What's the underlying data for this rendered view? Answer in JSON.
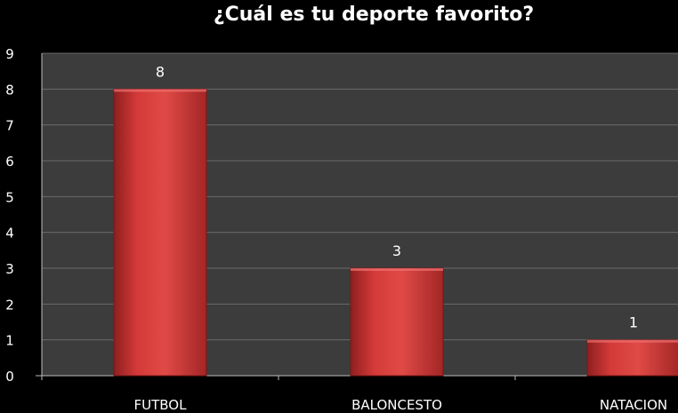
{
  "chart_data": {
    "type": "bar",
    "title": "¿Cuál es tu deporte favorito?",
    "categories": [
      "FUTBOL",
      "BALONCESTO",
      "NATACION"
    ],
    "values": [
      8,
      3,
      1
    ],
    "data_labels": [
      "8",
      "3",
      "1"
    ],
    "ylim": [
      0,
      9
    ],
    "yticks": [
      "0",
      "1",
      "2",
      "3",
      "4",
      "5",
      "6",
      "7",
      "8",
      "9"
    ],
    "grid": true,
    "legend": "none",
    "colors": {
      "page_background": "#000000",
      "plot_background": "#3c3c3c",
      "gridline": "#6a6a6a",
      "bar": "#c8302f",
      "text": "#ffffff"
    }
  }
}
